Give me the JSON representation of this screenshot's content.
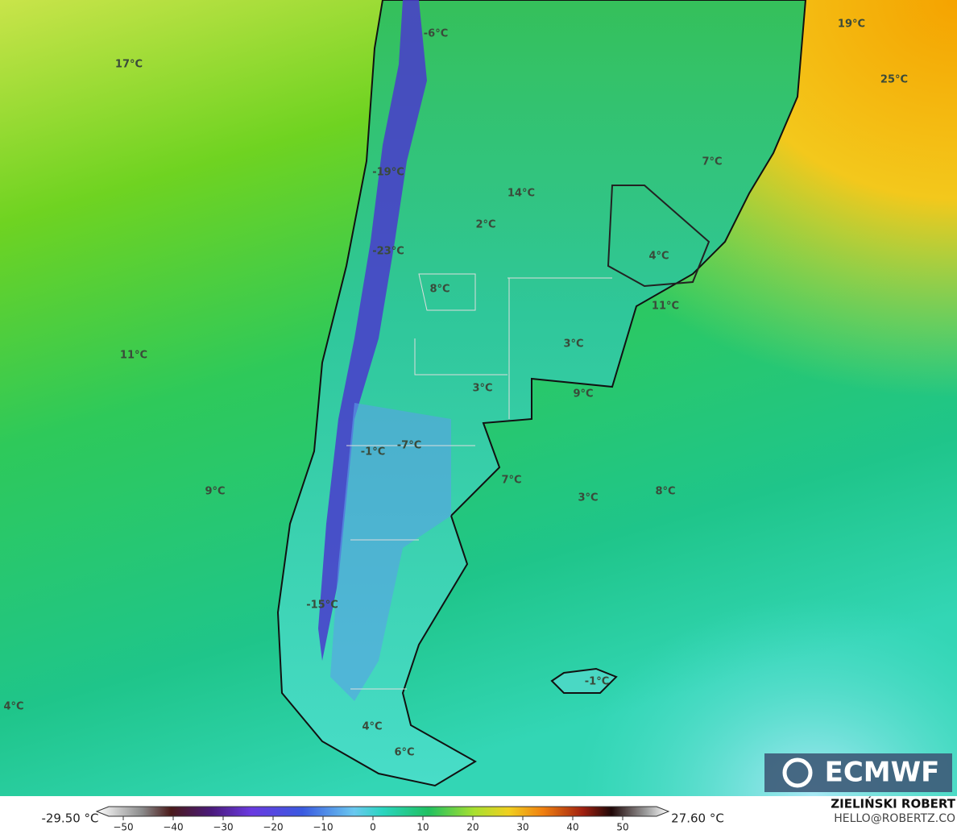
{
  "map": {
    "labels": [
      "17°C",
      "-6°C",
      "19°C",
      "25°C",
      "7°C",
      "-19°C",
      "14°C",
      "2°C",
      "-23°C",
      "4°C",
      "8°C",
      "11°C",
      "11°C",
      "3°C",
      "3°C",
      "9°C",
      "-1°C",
      "-7°C",
      "7°C",
      "3°C",
      "8°C",
      "9°C",
      "-15°C",
      "-1°C",
      "4°C",
      "4°C",
      "6°C"
    ],
    "logo": "ECMWF"
  },
  "colorbar": {
    "min_label": "-29.50 °C",
    "max_label": "27.60 °C",
    "ticks": [
      {
        "value": -50,
        "label": "−50"
      },
      {
        "value": -40,
        "label": "−40"
      },
      {
        "value": -30,
        "label": "−30"
      },
      {
        "value": -20,
        "label": "−20"
      },
      {
        "value": -10,
        "label": "−10"
      },
      0,
      10,
      20,
      30,
      40,
      50
    ]
  },
  "credits": {
    "author": "ZIELIŃSKI ROBERT",
    "contact": "HELLO@ROBERTZ.CO"
  }
}
